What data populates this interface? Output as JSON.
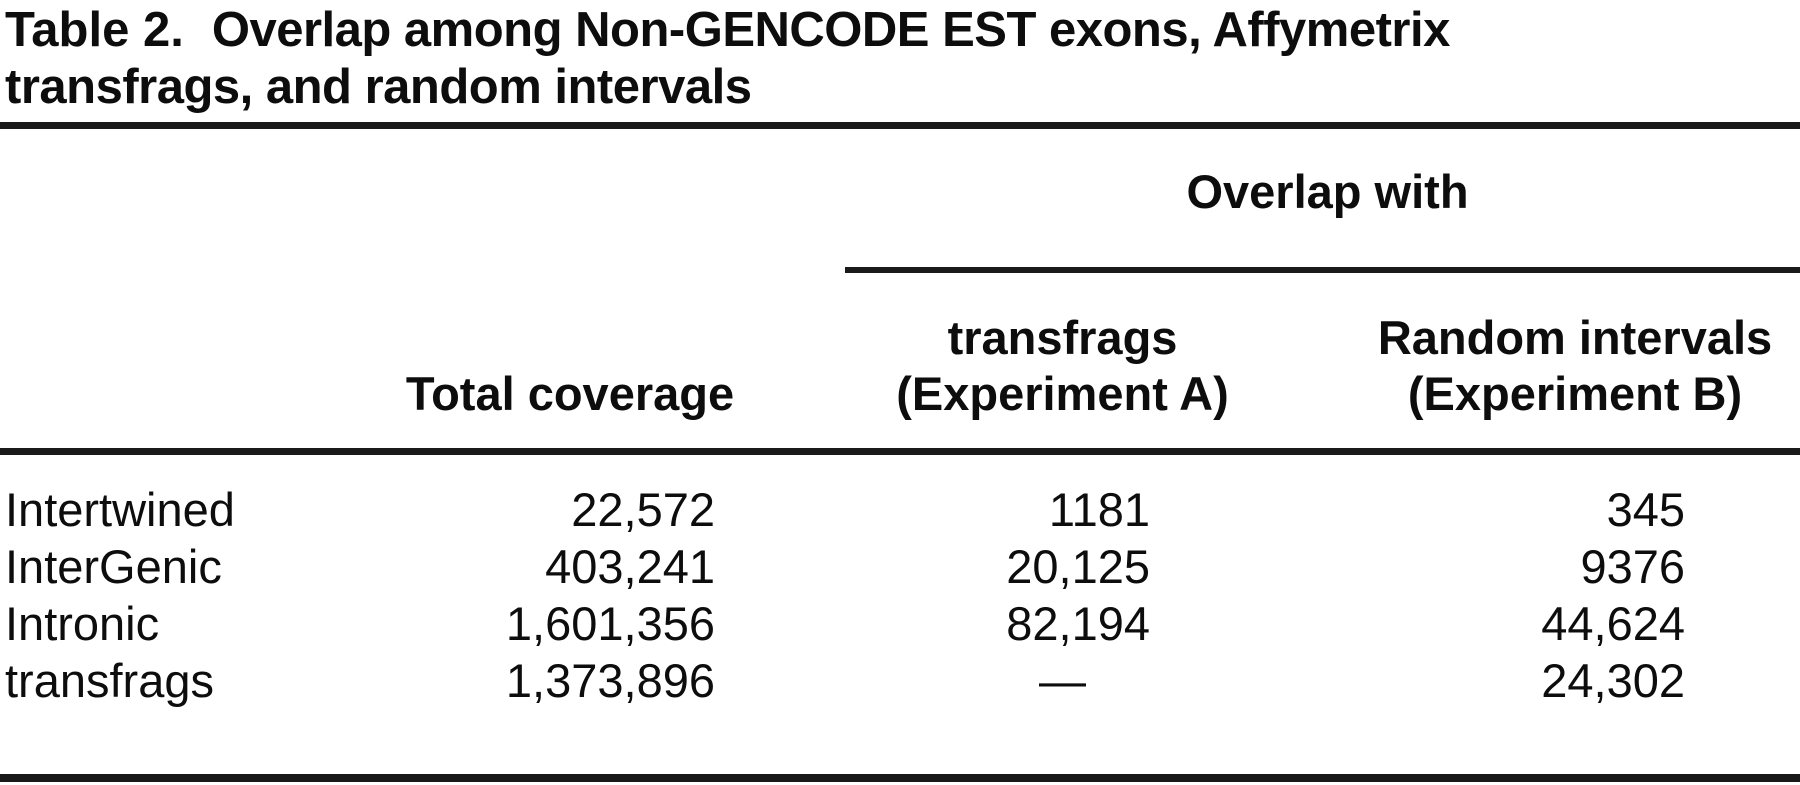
{
  "figure": {
    "title": {
      "label": "Table 2.",
      "line1": "Overlap among Non-GENCODE EST exons, Affymetrix",
      "line2": "transfrags, and random intervals"
    },
    "group_header": "Overlap with",
    "columns": {
      "total_coverage": "Total coverage",
      "exp_a_line1": "transfrags",
      "exp_a_line2": "(Experiment A)",
      "exp_b_line1": "Random intervals",
      "exp_b_line2": "(Experiment B)"
    },
    "rows": [
      {
        "label": "Intertwined",
        "total_coverage": "22,572",
        "exp_a": "1181",
        "exp_b": "345"
      },
      {
        "label": "InterGenic",
        "total_coverage": "403,241",
        "exp_a": "20,125",
        "exp_b": "9376"
      },
      {
        "label": "Intronic",
        "total_coverage": "1,601,356",
        "exp_a": "82,194",
        "exp_b": "44,624"
      },
      {
        "label": "transfrags",
        "total_coverage": "1,373,896",
        "exp_a": "—",
        "exp_b": "24,302"
      }
    ]
  }
}
